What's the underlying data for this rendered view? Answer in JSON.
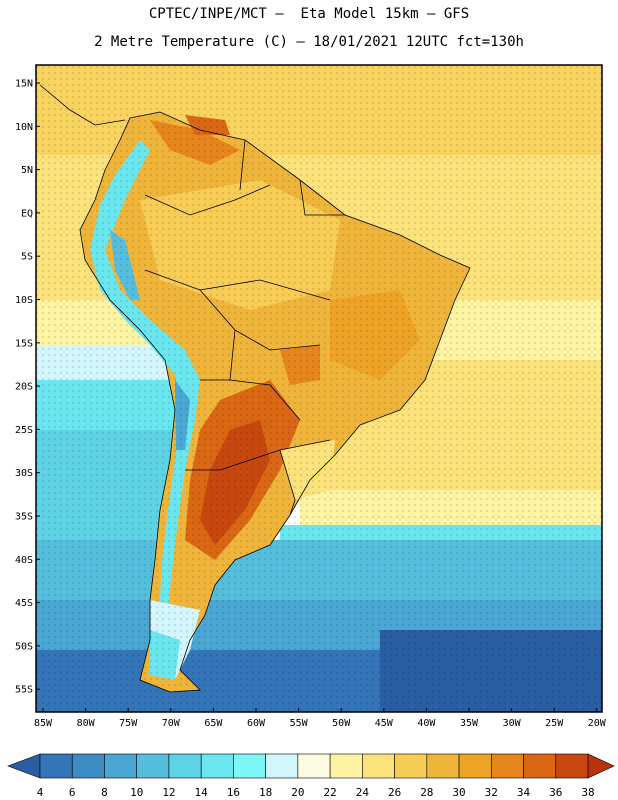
{
  "header": {
    "line1": "CPTEC/INPE/MCT –  Eta Model 15km – GFS",
    "line2": "2 Metre Temperature (C) – 18/01/2021 12UTC fct=130h"
  },
  "axes": {
    "lat_labels": [
      "15N",
      "10N",
      "5N",
      "EQ",
      "5S",
      "10S",
      "15S",
      "20S",
      "25S",
      "30S",
      "35S",
      "40S",
      "45S",
      "50S",
      "55S"
    ],
    "lon_labels": [
      "85W",
      "80W",
      "75W",
      "70W",
      "65W",
      "60W",
      "55W",
      "50W",
      "45W",
      "40W",
      "35W",
      "30W",
      "25W",
      "20W"
    ]
  },
  "colorbar": {
    "values": [
      "4",
      "6",
      "8",
      "10",
      "12",
      "14",
      "16",
      "18",
      "20",
      "22",
      "24",
      "26",
      "28",
      "30",
      "32",
      "34",
      "36",
      "38"
    ],
    "colors": [
      "#2a5ea3",
      "#3375b8",
      "#3d8cc4",
      "#4aa6d3",
      "#55bedd",
      "#5fd3e6",
      "#6ae6ef",
      "#7cf6f6",
      "#d2f6fb",
      "#fefbe3",
      "#fdf3a3",
      "#fce27a",
      "#f7cd55",
      "#efb53a",
      "#eda326",
      "#e5851b",
      "#d96714",
      "#c8470e",
      "#b8320b"
    ]
  }
}
